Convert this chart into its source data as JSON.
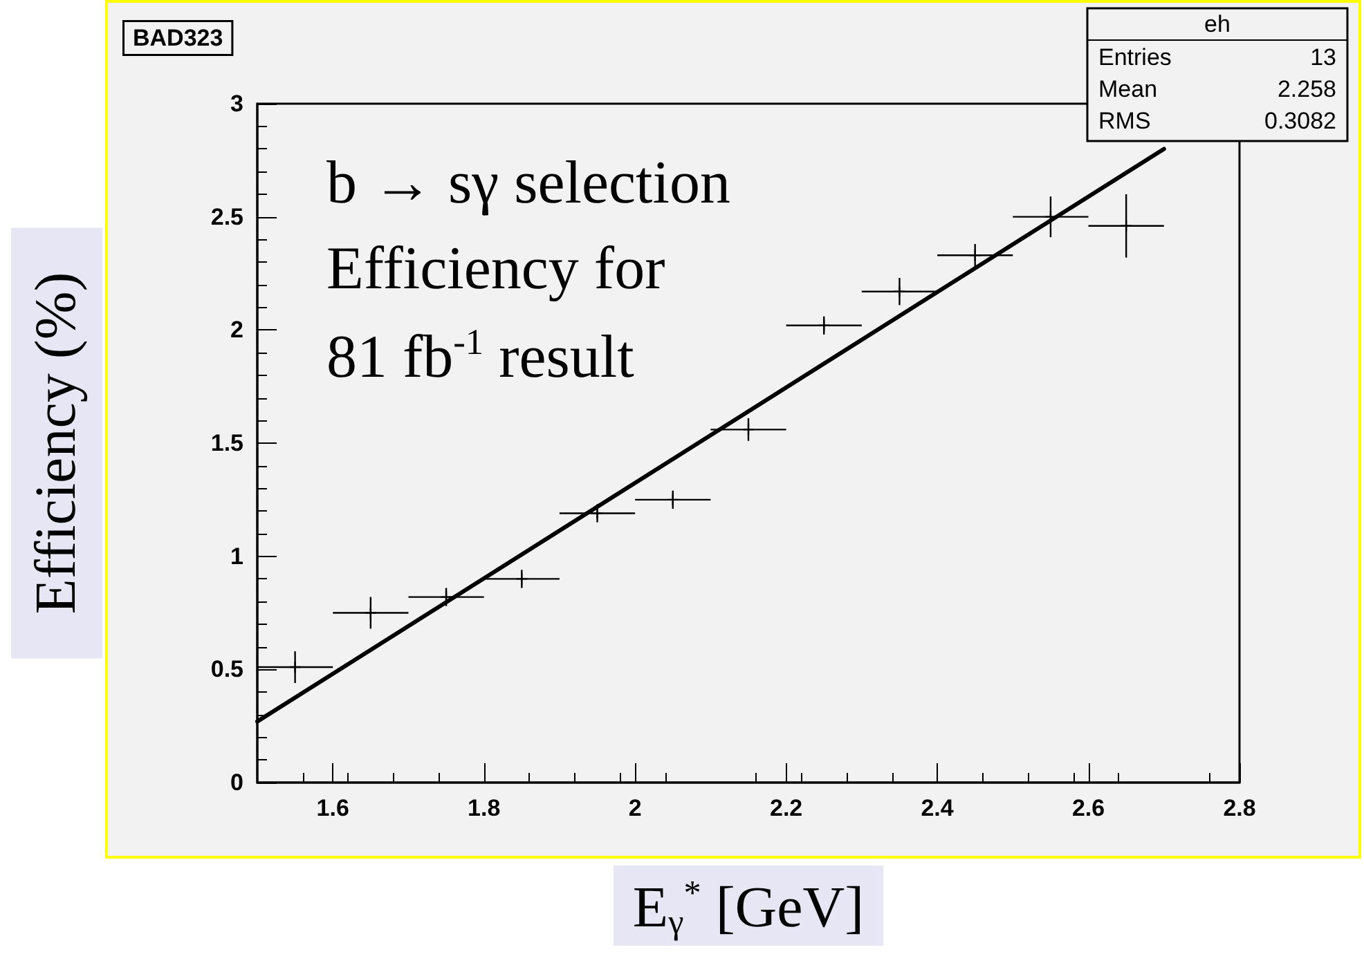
{
  "chart_data": {
    "type": "scatter",
    "title": "BAD323",
    "xlabel": "E$_{γ}$$^{*}$ [GeV]",
    "ylabel": "Efficiency (%)",
    "annotations": [
      "eh",
      "Entries 13",
      "Mean 2.258",
      "RMS 0.3082",
      "b → sγ selection",
      "Efficiency for",
      "81 fb$^{-1}$ result"
    ],
    "series": [
      {
        "color": "#000000",
        "marker": "cross",
        "x": [
          1.55,
          1.65,
          1.75,
          1.85,
          1.95,
          2.05,
          2.15,
          2.25,
          2.35,
          2.45,
          2.55,
          2.65
        ],
        "values": [
          0.51,
          0.75,
          0.82,
          0.9,
          1.19,
          1.25,
          1.56,
          2.02,
          2.17,
          2.33,
          2.5,
          2.46
        ],
        "errors": [
          0.07,
          0.07,
          0.04,
          0.04,
          0.04,
          0.04,
          0.05,
          0.04,
          0.06,
          0.05,
          0.09,
          0.14
        ],
        "xerrors": [
          0.05,
          0.05,
          0.05,
          0.05,
          0.05,
          0.05,
          0.05,
          0.05,
          0.05,
          0.05,
          0.05,
          0.05
        ]
      },
      {
        "type": "line",
        "color": "#000000",
        "marker": "none",
        "line_style": "solid",
        "x": [
          1.5,
          2.7
        ],
        "values": [
          0.27,
          2.8
        ]
      }
    ],
    "xlim": [
      1.5,
      2.8
    ],
    "xticks": [
      1.6,
      1.8,
      2,
      2.2,
      2.4,
      2.6,
      2.8
    ],
    "ylim": [
      0,
      3
    ],
    "yticks": [
      0,
      0.5,
      1,
      1.5,
      2,
      2.5,
      3
    ],
    "grid": false
  }
}
